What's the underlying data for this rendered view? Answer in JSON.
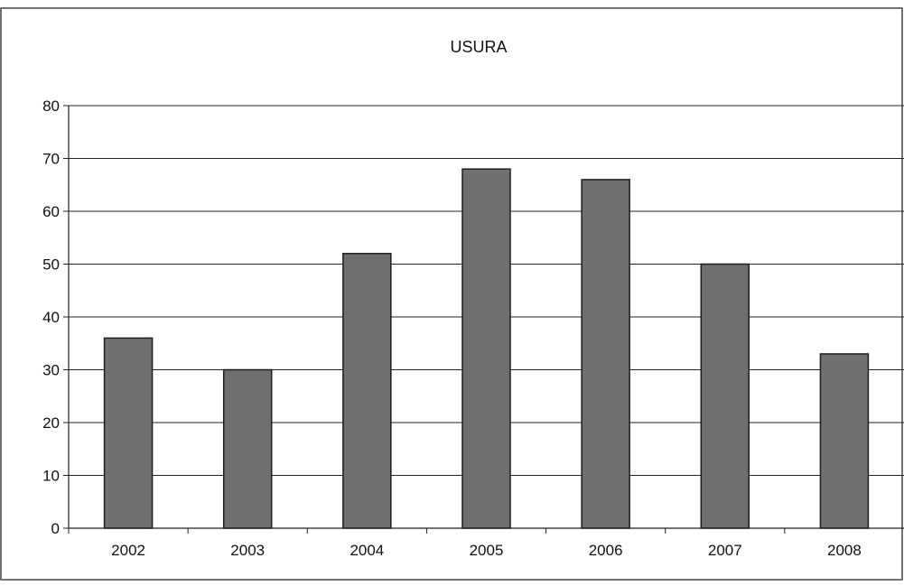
{
  "chart_data": {
    "type": "bar",
    "title": "USURA",
    "xlabel": "",
    "ylabel": "",
    "categories": [
      "2002",
      "2003",
      "2004",
      "2005",
      "2006",
      "2007",
      "2008"
    ],
    "values": [
      36,
      30,
      52,
      68,
      66,
      50,
      33
    ],
    "ylim": [
      0,
      80
    ],
    "yticks": [
      0,
      10,
      20,
      30,
      40,
      50,
      60,
      70,
      80
    ],
    "grid": true,
    "legend": "none",
    "colors": {
      "bar_fill": "#6f6f6f",
      "bar_stroke": "#1e1e1e",
      "grid": "#222222",
      "frame": "#444444"
    }
  }
}
